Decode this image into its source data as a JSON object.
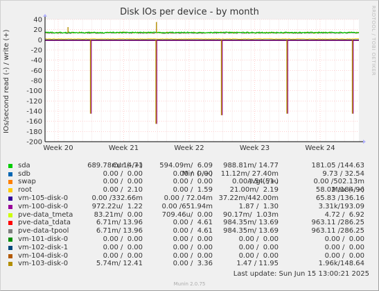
{
  "chart_data": {
    "type": "line",
    "title": "Disk IOs per device - by month",
    "ylabel": "IOs/second read (-) / write (+)",
    "ylim": [
      -200,
      40
    ],
    "yticks": [
      40,
      20,
      0,
      -20,
      -40,
      -60,
      -80,
      -100,
      -120,
      -140,
      -160,
      -180,
      -200
    ],
    "xticks": [
      "Week 20",
      "Week 21",
      "Week 22",
      "Week 23",
      "Week 24"
    ],
    "grid": true,
    "baseline_write": 14,
    "read_spikes": [
      {
        "week": 20.5,
        "value": -145
      },
      {
        "week": 21.5,
        "value": -165
      },
      {
        "week": 22.5,
        "value": -148
      },
      {
        "week": 23.5,
        "value": -145
      },
      {
        "week": 24.5,
        "value": -145
      }
    ],
    "write_spikes": [
      {
        "week": 20.15,
        "value": 25
      },
      {
        "week": 21.5,
        "value": 35
      }
    ]
  },
  "legend": {
    "headers": {
      "cur": "Cur (-/+)",
      "min": "Min (-/+)",
      "avg": "Avg (-/+)",
      "max": "Max (-/+)"
    },
    "rows": [
      {
        "name": "sda",
        "color": "#00cc00",
        "cur": "689.78m/ 14.71",
        "min": "594.09m/  6.09",
        "avg": "988.81m/ 14.77",
        "max": "181.05 /144.63"
      },
      {
        "name": "sdb",
        "color": "#0066b3",
        "cur": "0.00 /  0.00",
        "min": "0.00 /  0.00",
        "avg": "11.12m/ 27.40m",
        "max": "9.73 / 32.54"
      },
      {
        "name": "swap",
        "color": "#ff8000",
        "cur": "0.00 /  0.00",
        "min": "0.00 /  0.00",
        "avg": "0.00 / 54.51u",
        "max": "0.00 /502.13m"
      },
      {
        "name": "root",
        "color": "#ffcc00",
        "cur": "0.00 /  2.10",
        "min": "0.00 /  1.59",
        "avg": "21.00m/  2.19",
        "max": "58.02 /184.96"
      },
      {
        "name": "vm-105-disk-0",
        "color": "#330099",
        "cur": "0.00 /332.66m",
        "min": "0.00 / 72.04m",
        "avg": "37.22m/442.00m",
        "max": "65.83 /136.16"
      },
      {
        "name": "vm-100-disk-0",
        "color": "#990099",
        "cur": "972.22u/  1.22",
        "min": "0.00 /651.94m",
        "avg": "1.87 /  1.30",
        "max": "3.31k/193.09"
      },
      {
        "name": "pve-data_tmeta",
        "color": "#ccff00",
        "cur": "83.21m/  0.00",
        "min": "709.46u/  0.00",
        "avg": "90.17m/  1.03m",
        "max": "4.72 /  6.92"
      },
      {
        "name": "pve-data_tdata",
        "color": "#ff0000",
        "cur": "6.71m/ 13.96",
        "min": "0.00 /  4.61",
        "avg": "984.35m/ 13.69",
        "max": "963.11 /286.25"
      },
      {
        "name": "pve-data-tpool",
        "color": "#808080",
        "cur": "6.71m/ 13.96",
        "min": "0.00 /  4.61",
        "avg": "984.35m/ 13.69",
        "max": "963.11 /286.25"
      },
      {
        "name": "vm-101-disk-0",
        "color": "#008f00",
        "cur": "0.00 /  0.00",
        "min": "0.00 /  0.00",
        "avg": "0.00 /  0.00",
        "max": "0.00 /  0.00"
      },
      {
        "name": "vm-102-disk-1",
        "color": "#00487d",
        "cur": "0.00 /  0.00",
        "min": "0.00 /  0.00",
        "avg": "0.00 /  0.00",
        "max": "0.00 /  0.00"
      },
      {
        "name": "vm-104-disk-0",
        "color": "#b35a00",
        "cur": "0.00 /  0.00",
        "min": "0.00 /  0.00",
        "avg": "0.00 /  0.00",
        "max": "0.00 /  0.00"
      },
      {
        "name": "vm-103-disk-0",
        "color": "#b38f00",
        "cur": "5.74m/ 12.41",
        "min": "0.00 /  3.36",
        "avg": "1.47 / 11.95",
        "max": "1.96k/148.64"
      }
    ]
  },
  "footer": {
    "last_update": "Last update: Sun Jun 15 13:00:21 2025",
    "generator": "Munin 2.0.75"
  },
  "watermark": "RRDTOOL / TOBI OETIKER"
}
